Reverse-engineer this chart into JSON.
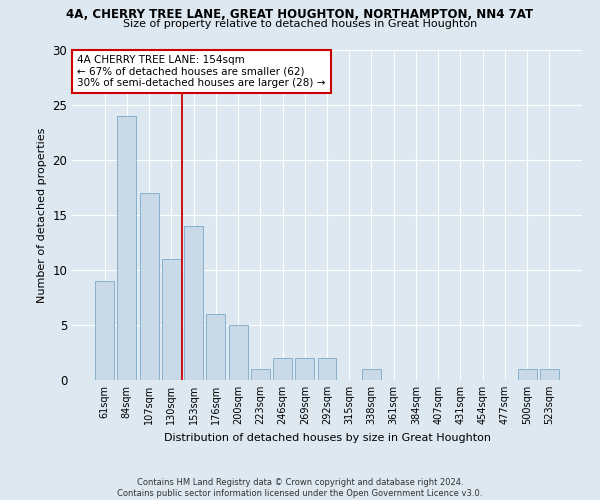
{
  "title": "4A, CHERRY TREE LANE, GREAT HOUGHTON, NORTHAMPTON, NN4 7AT",
  "subtitle": "Size of property relative to detached houses in Great Houghton",
  "xlabel": "Distribution of detached houses by size in Great Houghton",
  "ylabel": "Number of detached properties",
  "bar_labels": [
    "61sqm",
    "84sqm",
    "107sqm",
    "130sqm",
    "153sqm",
    "176sqm",
    "200sqm",
    "223sqm",
    "246sqm",
    "269sqm",
    "292sqm",
    "315sqm",
    "338sqm",
    "361sqm",
    "384sqm",
    "407sqm",
    "431sqm",
    "454sqm",
    "477sqm",
    "500sqm",
    "523sqm"
  ],
  "bar_values": [
    9,
    24,
    17,
    11,
    14,
    6,
    5,
    1,
    2,
    2,
    2,
    0,
    1,
    0,
    0,
    0,
    0,
    0,
    0,
    1,
    1
  ],
  "bar_color": "#c9d9e8",
  "bar_edge_color": "#7aaac8",
  "vline_x": 3.5,
  "vline_color": "#cc0000",
  "annotation_title": "4A CHERRY TREE LANE: 154sqm",
  "annotation_line2": "← 67% of detached houses are smaller (62)",
  "annotation_line3": "30% of semi-detached houses are larger (28) →",
  "annotation_box_color": "#ffffff",
  "annotation_box_edge": "#cc0000",
  "ylim": [
    0,
    30
  ],
  "yticks": [
    0,
    5,
    10,
    15,
    20,
    25,
    30
  ],
  "footer1": "Contains HM Land Registry data © Crown copyright and database right 2024.",
  "footer2": "Contains public sector information licensed under the Open Government Licence v3.0.",
  "bg_color": "#dde8f0",
  "plot_bg_color": "#dde8f0",
  "grid_color": "#ffffff"
}
